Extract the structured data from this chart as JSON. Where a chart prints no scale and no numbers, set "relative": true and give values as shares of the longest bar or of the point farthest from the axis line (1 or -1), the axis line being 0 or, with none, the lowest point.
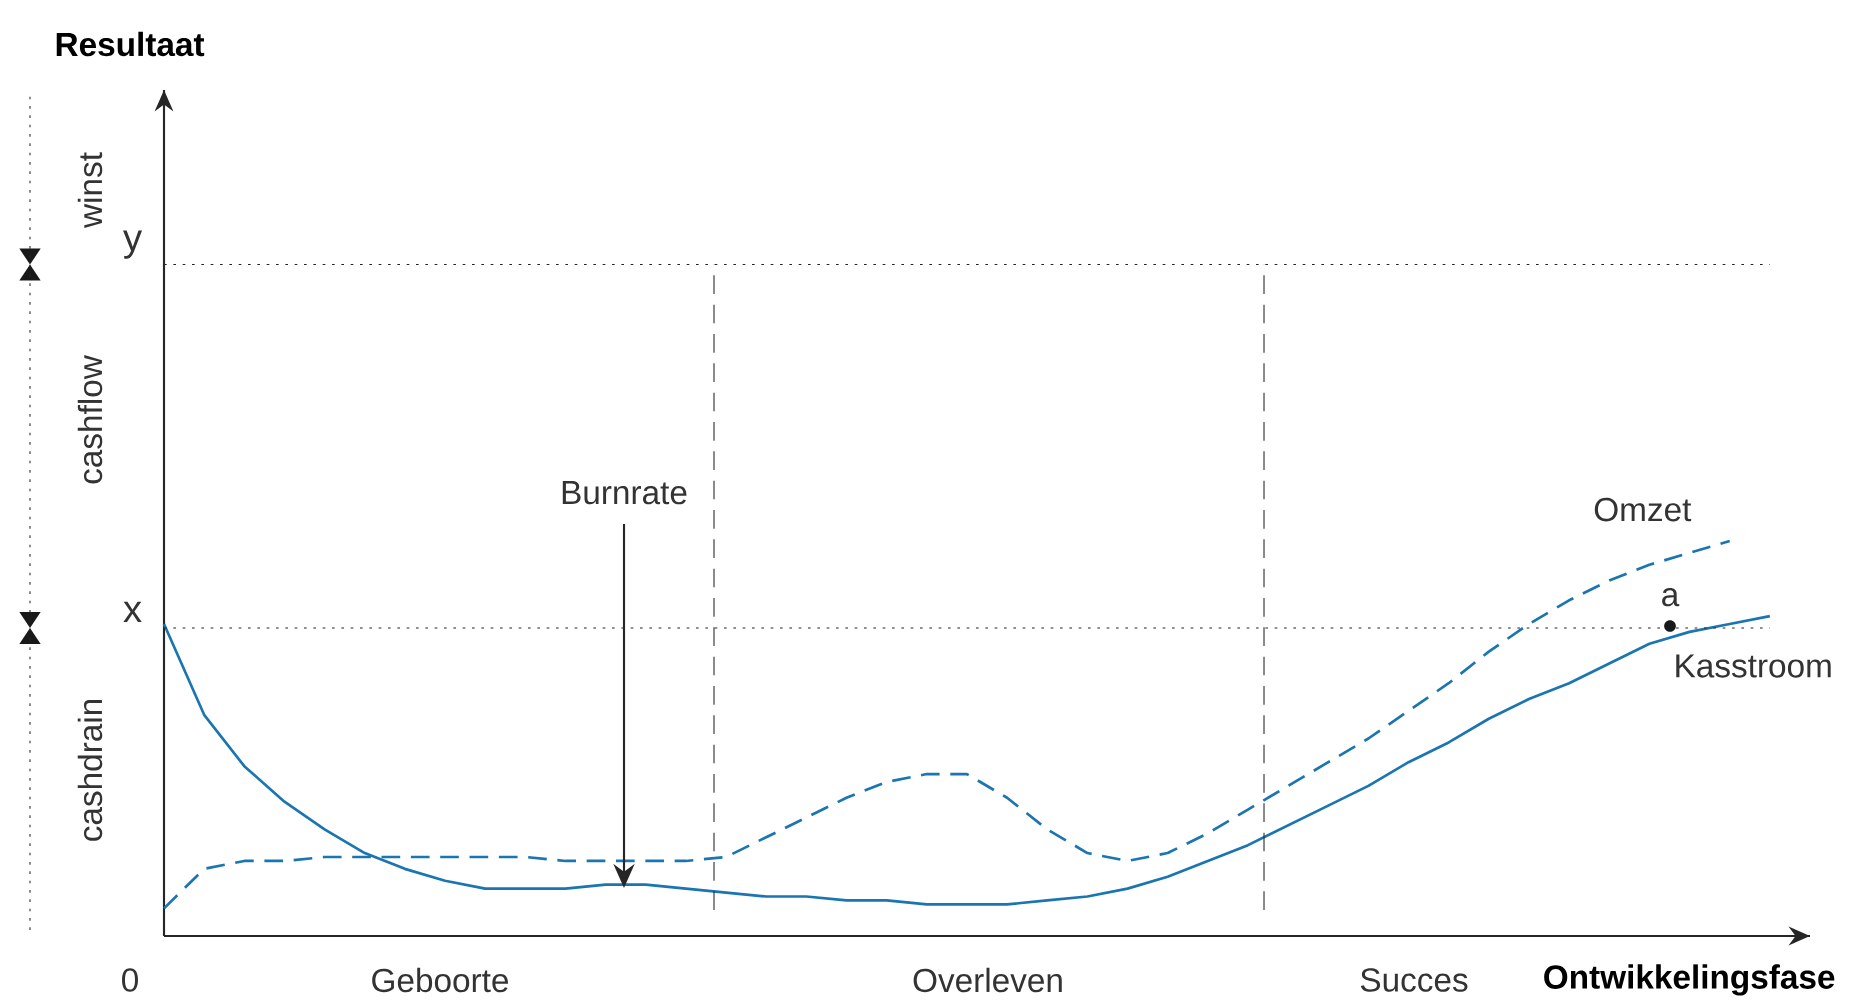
{
  "chart_data": {
    "type": "line",
    "relative": true,
    "xlabel": "Ontwikkelingsfase",
    "legend": "right",
    "marker": "none",
    "categories": [
      null,
      null,
      null,
      null,
      null,
      null,
      null,
      null,
      null,
      null,
      null,
      null,
      null,
      null,
      null,
      null,
      null,
      null,
      null,
      null,
      null,
      null,
      null,
      null,
      null,
      null,
      null,
      null,
      null,
      null,
      null,
      null,
      null,
      null,
      null,
      null,
      null,
      null,
      null,
      null,
      null
    ],
    "series": [
      {
        "name": "Omzet",
        "color": "#1a75b0",
        "line_style": "dashed",
        "values": [
          0.07,
          0.17,
          0.19,
          0.19,
          0.2,
          0.2,
          0.2,
          0.2,
          0.2,
          0.2,
          0.19,
          0.19,
          0.19,
          0.19,
          0.2,
          0.25,
          0.3,
          0.35,
          0.39,
          0.41,
          0.41,
          0.35,
          0.27,
          0.21,
          0.19,
          0.21,
          0.26,
          0.32,
          0.38,
          0.44,
          0.5,
          0.57,
          0.64,
          0.72,
          0.79,
          0.85,
          0.9,
          0.94,
          0.97,
          1,
          null
        ]
      },
      {
        "name": "Kasstroom",
        "color": "#1a75b0",
        "line_style": "solid",
        "values": [
          0.79,
          0.56,
          0.43,
          0.34,
          0.27,
          0.21,
          0.17,
          0.14,
          0.12,
          0.12,
          0.12,
          0.13,
          0.13,
          0.12,
          0.11,
          0.1,
          0.1,
          0.09,
          0.09,
          0.08,
          0.08,
          0.08,
          0.09,
          0.1,
          0.12,
          0.15,
          0.19,
          0.23,
          0.28,
          0.33,
          0.38,
          0.44,
          0.49,
          0.55,
          0.6,
          0.64,
          0.69,
          0.74,
          0.77,
          0.79,
          0.81
        ]
      }
    ],
    "ref_lines": [
      {
        "axis": "y",
        "value": 0.78,
        "label": "x",
        "line_style": "dotted"
      },
      {
        "axis": "y",
        "value": 1.7,
        "label": "y",
        "line_style": "dotted"
      }
    ],
    "annotations": [
      "0",
      "winst",
      "cashflow",
      "cashdrain",
      "Geboorte",
      "Overleven",
      "Succes",
      "Burnrate",
      "a",
      "Resultaat"
    ]
  }
}
